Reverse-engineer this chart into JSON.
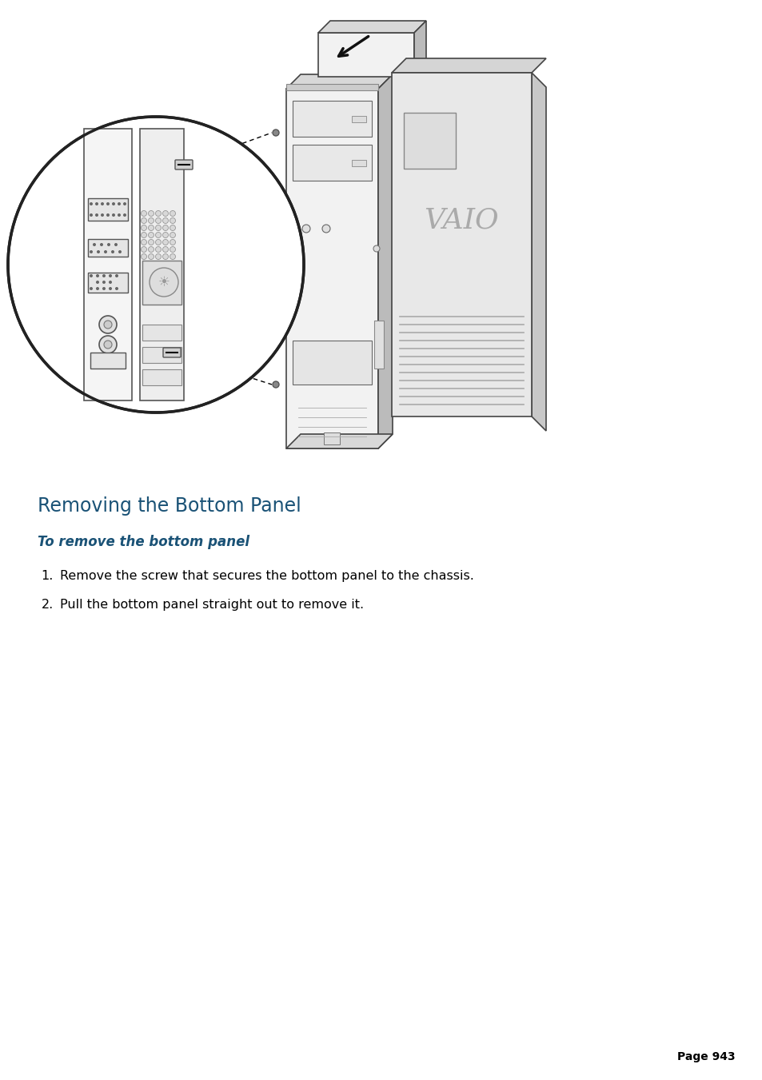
{
  "title": "Removing the Bottom Panel",
  "subtitle": "To remove the bottom panel",
  "steps": [
    "Remove the screw that secures the bottom panel to the chassis.",
    "Pull the bottom panel straight out to remove it."
  ],
  "page_number": "Page 943",
  "title_color": "#1a5276",
  "subtitle_color": "#1a5276",
  "text_color": "#000000",
  "bg_color": "#ffffff",
  "title_fontsize": 17,
  "subtitle_fontsize": 12,
  "body_fontsize": 11.5,
  "page_fontsize": 10
}
